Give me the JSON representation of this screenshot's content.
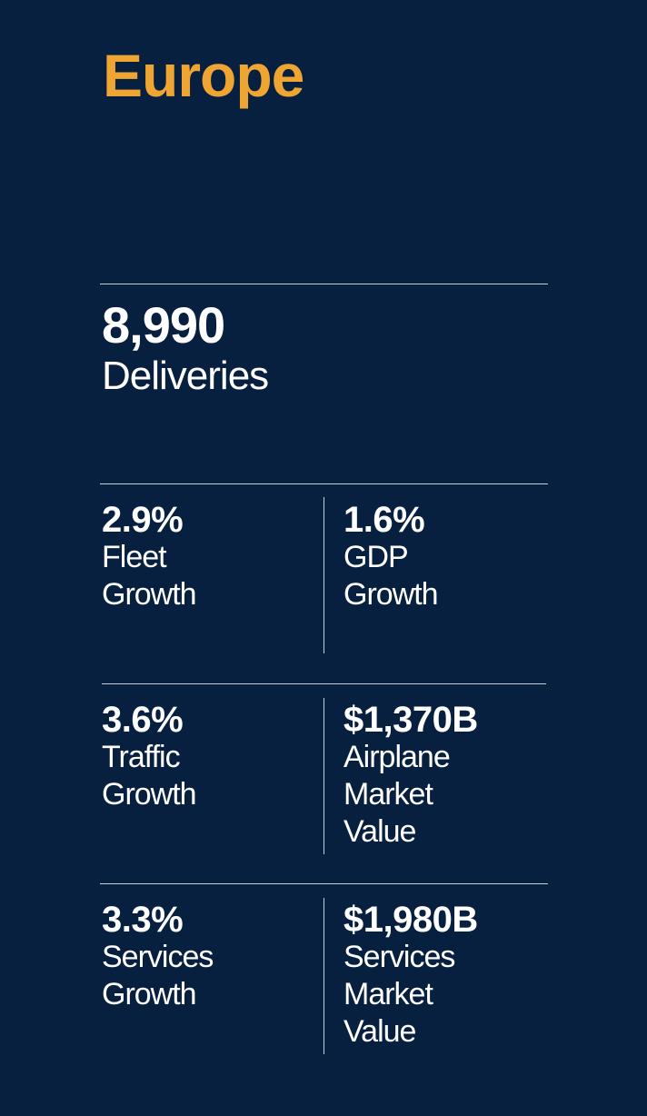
{
  "title": "Europe",
  "colors": {
    "background": "#082040",
    "accent": "#eea532",
    "text": "#ffffff",
    "rule": "#c9cfd8"
  },
  "headline": {
    "value": "8,990",
    "label": "Deliveries"
  },
  "stats": [
    {
      "value": "2.9%",
      "label_lines": [
        "Fleet",
        "Growth"
      ]
    },
    {
      "value": "1.6%",
      "label_lines": [
        "GDP",
        "Growth"
      ]
    },
    {
      "value": "3.6%",
      "label_lines": [
        "Traffic",
        "Growth"
      ]
    },
    {
      "value": "$1,370B",
      "label_lines": [
        "Airplane",
        "Market",
        "Value"
      ]
    },
    {
      "value": "3.3%",
      "label_lines": [
        "Services",
        "Growth"
      ]
    },
    {
      "value": "$1,980B",
      "label_lines": [
        "Services",
        "Market",
        "Value"
      ]
    }
  ]
}
